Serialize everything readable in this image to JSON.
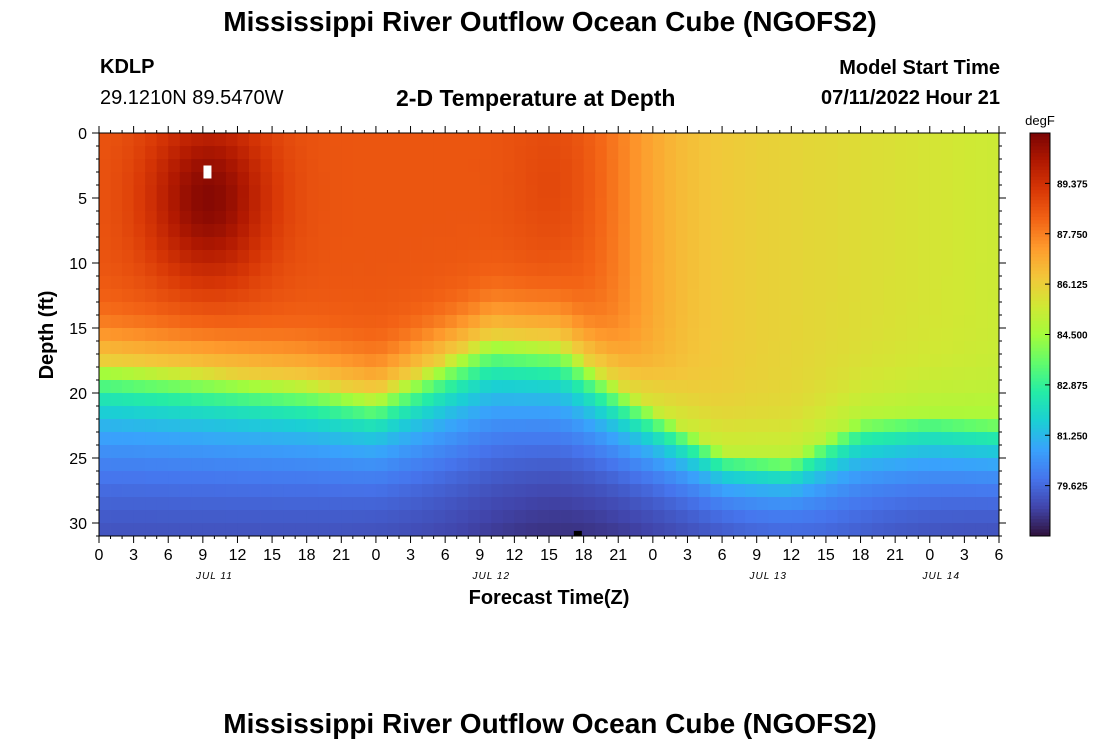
{
  "header": {
    "main_title": "Mississippi River Outflow Ocean Cube (NGOFS2)",
    "station_id": "KDLP",
    "station_coords": "29.1210N  89.5470W",
    "plot_title": "2-D Temperature at Depth",
    "model_start_label": "Model Start Time",
    "model_start_value": "07/11/2022 Hour 21"
  },
  "footer": {
    "repeat_title": "Mississippi River Outflow Ocean Cube (NGOFS2)"
  },
  "colors": {
    "scale": [
      "#30123b",
      "#4145ab",
      "#4675ed",
      "#39a2fc",
      "#1bcfd4",
      "#24eca6",
      "#61fc6c",
      "#a4fc3b",
      "#d1e834",
      "#f3c63a",
      "#fe9b2d",
      "#f36315",
      "#d93806",
      "#b11901",
      "#7a0403"
    ]
  },
  "chart_data": {
    "type": "heatmap",
    "title": "2-D Temperature at Depth",
    "xlabel": "Forecast Time(Z)",
    "ylabel": "Depth (ft)",
    "x_range_hours": [
      0,
      78
    ],
    "y_range_ft": [
      0,
      31
    ],
    "x_tick_labels": [
      "0",
      "3",
      "6",
      "9",
      "12",
      "15",
      "18",
      "21",
      "0",
      "3",
      "6",
      "9",
      "12",
      "15",
      "18",
      "21",
      "0",
      "3",
      "6",
      "9",
      "12",
      "15",
      "18",
      "21",
      "0",
      "3",
      "6"
    ],
    "x_tick_step_hours": 3,
    "date_labels": [
      {
        "label": "JUL 11",
        "hour": 10
      },
      {
        "label": "JUL 12",
        "hour": 34
      },
      {
        "label": "JUL 13",
        "hour": 58
      },
      {
        "label": "JUL 14",
        "hour": 73
      }
    ],
    "y_ticks": [
      0,
      5,
      10,
      15,
      20,
      25,
      30
    ],
    "colorbar": {
      "unit": "degF",
      "min": 78.0,
      "max": 91.0,
      "tick_values": [
        79.625,
        81.25,
        82.875,
        84.5,
        86.125,
        87.75,
        89.375
      ],
      "tick_labels": [
        "79.625",
        "81.250",
        "82.875",
        "84.500",
        "86.125",
        "87.750",
        "89.375"
      ]
    },
    "markers": [
      {
        "name": "max-temp-marker",
        "hour": 9.4,
        "depth_ft": 3
      },
      {
        "name": "min-temp-marker",
        "hour": 41.5,
        "depth_ft": 30.8
      }
    ],
    "model": {
      "hot_core": {
        "hour": 9.5,
        "depth_ft": 5,
        "peak_degF": 90.8
      },
      "secondary_core": {
        "hour": 40,
        "depth_ft": 4,
        "peak_degF": 88.9
      },
      "upper_mixed_layer_degF": 88.5,
      "late_surface_degF": [
        86.6,
        85.3
      ],
      "thermocline_depth_ft": [
        [
          0,
          17.5
        ],
        [
          18,
          19
        ],
        [
          24,
          20
        ],
        [
          34,
          15.5
        ],
        [
          40,
          16
        ],
        [
          46,
          20
        ],
        [
          54,
          24.5
        ],
        [
          60,
          25
        ],
        [
          66,
          22
        ],
        [
          72,
          21.5
        ],
        [
          78,
          22
        ]
      ],
      "bottom_degF": 78.6,
      "cold_bottom_center_hour": 40,
      "surface_warm_until_hour": 46
    }
  }
}
